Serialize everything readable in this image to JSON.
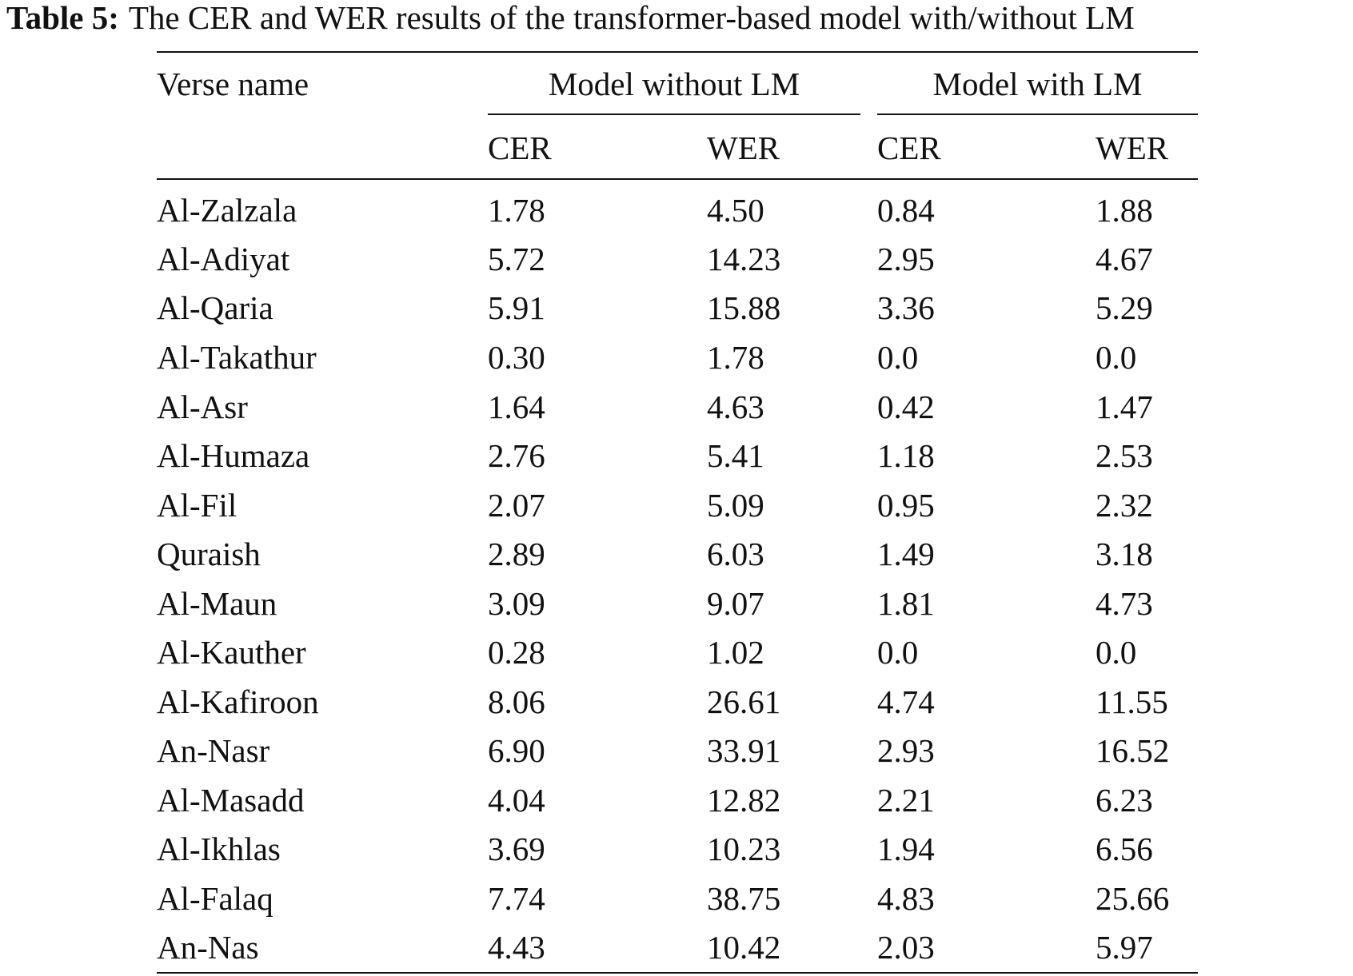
{
  "caption": {
    "label": "Table 5:",
    "text": "The CER and WER results of the transformer-based model with/without LM"
  },
  "header": {
    "verse_name": "Verse name",
    "group_without": "Model without LM",
    "group_with": "Model with LM",
    "cer_without": "CER",
    "wer_without": "WER",
    "cer_with": "CER",
    "wer_with": "WER"
  },
  "rows": [
    {
      "name": "Al-Zalzala",
      "cer_no_lm": "1.78",
      "wer_no_lm": "4.50",
      "cer_lm": "0.84",
      "wer_lm": "1.88"
    },
    {
      "name": "Al-Adiyat",
      "cer_no_lm": "5.72",
      "wer_no_lm": "14.23",
      "cer_lm": "2.95",
      "wer_lm": "4.67"
    },
    {
      "name": "Al-Qaria",
      "cer_no_lm": "5.91",
      "wer_no_lm": "15.88",
      "cer_lm": "3.36",
      "wer_lm": "5.29"
    },
    {
      "name": "Al-Takathur",
      "cer_no_lm": "0.30",
      "wer_no_lm": "1.78",
      "cer_lm": "0.0",
      "wer_lm": "0.0"
    },
    {
      "name": "Al-Asr",
      "cer_no_lm": "1.64",
      "wer_no_lm": "4.63",
      "cer_lm": "0.42",
      "wer_lm": "1.47"
    },
    {
      "name": "Al-Humaza",
      "cer_no_lm": "2.76",
      "wer_no_lm": "5.41",
      "cer_lm": "1.18",
      "wer_lm": "2.53"
    },
    {
      "name": "Al-Fil",
      "cer_no_lm": "2.07",
      "wer_no_lm": "5.09",
      "cer_lm": "0.95",
      "wer_lm": "2.32"
    },
    {
      "name": "Quraish",
      "cer_no_lm": "2.89",
      "wer_no_lm": "6.03",
      "cer_lm": "1.49",
      "wer_lm": "3.18"
    },
    {
      "name": "Al-Maun",
      "cer_no_lm": "3.09",
      "wer_no_lm": "9.07",
      "cer_lm": "1.81",
      "wer_lm": "4.73"
    },
    {
      "name": "Al-Kauther",
      "cer_no_lm": "0.28",
      "wer_no_lm": "1.02",
      "cer_lm": "0.0",
      "wer_lm": "0.0"
    },
    {
      "name": "Al-Kafiroon",
      "cer_no_lm": "8.06",
      "wer_no_lm": "26.61",
      "cer_lm": "4.74",
      "wer_lm": "11.55"
    },
    {
      "name": "An-Nasr",
      "cer_no_lm": "6.90",
      "wer_no_lm": "33.91",
      "cer_lm": "2.93",
      "wer_lm": "16.52"
    },
    {
      "name": "Al-Masadd",
      "cer_no_lm": "4.04",
      "wer_no_lm": "12.82",
      "cer_lm": "2.21",
      "wer_lm": "6.23"
    },
    {
      "name": "Al-Ikhlas",
      "cer_no_lm": "3.69",
      "wer_no_lm": "10.23",
      "cer_lm": "1.94",
      "wer_lm": "6.56"
    },
    {
      "name": "Al-Falaq",
      "cer_no_lm": "7.74",
      "wer_no_lm": "38.75",
      "cer_lm": "4.83",
      "wer_lm": "25.66"
    },
    {
      "name": "An-Nas",
      "cer_no_lm": "4.43",
      "wer_no_lm": "10.42",
      "cer_lm": "2.03",
      "wer_lm": "5.97"
    }
  ]
}
